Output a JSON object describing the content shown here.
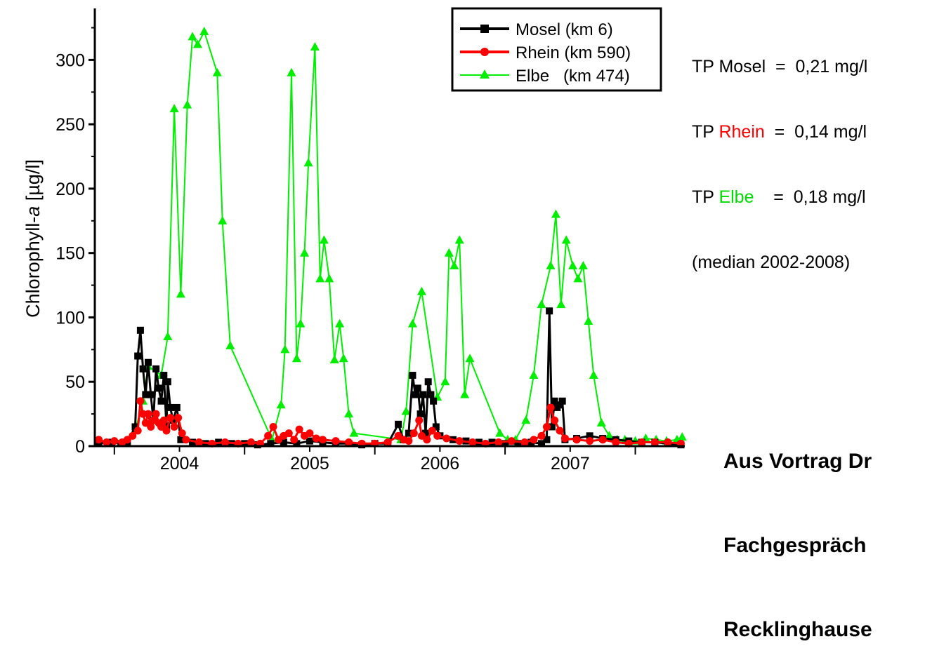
{
  "chart_data": {
    "type": "line",
    "title": "",
    "xlabel": "",
    "ylabel": "Chlorophyll-a [µg/l]",
    "ylabel_main": "Chlorophyll-",
    "ylabel_italic": "a",
    "ylabel_unit": " [µg/l]",
    "xlim": [
      2003.35,
      2007.88
    ],
    "ylim": [
      0,
      340
    ],
    "x_ticks": [
      {
        "value": 2003.5,
        "label": ""
      },
      {
        "value": 2004.0,
        "label": "2004"
      },
      {
        "value": 2004.5,
        "label": ""
      },
      {
        "value": 2005.0,
        "label": "2005"
      },
      {
        "value": 2005.5,
        "label": ""
      },
      {
        "value": 2006.0,
        "label": "2006"
      },
      {
        "value": 2006.5,
        "label": ""
      },
      {
        "value": 2007.0,
        "label": "2007"
      },
      {
        "value": 2007.5,
        "label": ""
      }
    ],
    "y_ticks": [
      0,
      50,
      100,
      150,
      200,
      250,
      300
    ],
    "grid": false,
    "legend_position": "top-right",
    "series": [
      {
        "name": "Mosel (km 6)",
        "color": "#000000",
        "marker": "square",
        "points": [
          [
            2003.38,
            2
          ],
          [
            2003.48,
            3
          ],
          [
            2003.55,
            2
          ],
          [
            2003.6,
            3
          ],
          [
            2003.66,
            15
          ],
          [
            2003.68,
            70
          ],
          [
            2003.7,
            90
          ],
          [
            2003.72,
            60
          ],
          [
            2003.74,
            40
          ],
          [
            2003.76,
            65
          ],
          [
            2003.78,
            40
          ],
          [
            2003.8,
            20
          ],
          [
            2003.82,
            60
          ],
          [
            2003.84,
            45
          ],
          [
            2003.86,
            35
          ],
          [
            2003.88,
            55
          ],
          [
            2003.9,
            15
          ],
          [
            2003.91,
            50
          ],
          [
            2003.93,
            30
          ],
          [
            2003.95,
            20
          ],
          [
            2003.98,
            30
          ],
          [
            2004.01,
            5
          ],
          [
            2004.1,
            3
          ],
          [
            2004.2,
            2
          ],
          [
            2004.3,
            3
          ],
          [
            2004.4,
            2
          ],
          [
            2004.5,
            2
          ],
          [
            2004.6,
            1
          ],
          [
            2004.7,
            2
          ],
          [
            2004.8,
            3
          ],
          [
            2004.9,
            2
          ],
          [
            2005.0,
            4
          ],
          [
            2005.1,
            3
          ],
          [
            2005.2,
            2
          ],
          [
            2005.3,
            2
          ],
          [
            2005.4,
            1
          ],
          [
            2005.5,
            2
          ],
          [
            2005.6,
            2
          ],
          [
            2005.68,
            17
          ],
          [
            2005.72,
            5
          ],
          [
            2005.76,
            10
          ],
          [
            2005.79,
            55
          ],
          [
            2005.81,
            40
          ],
          [
            2005.83,
            45
          ],
          [
            2005.85,
            25
          ],
          [
            2005.87,
            40
          ],
          [
            2005.89,
            10
          ],
          [
            2005.91,
            50
          ],
          [
            2005.93,
            40
          ],
          [
            2005.95,
            35
          ],
          [
            2005.97,
            15
          ],
          [
            2006.0,
            8
          ],
          [
            2006.1,
            5
          ],
          [
            2006.2,
            4
          ],
          [
            2006.3,
            3
          ],
          [
            2006.4,
            3
          ],
          [
            2006.5,
            2
          ],
          [
            2006.6,
            2
          ],
          [
            2006.7,
            3
          ],
          [
            2006.78,
            2
          ],
          [
            2006.82,
            5
          ],
          [
            2006.84,
            105
          ],
          [
            2006.86,
            15
          ],
          [
            2006.88,
            35
          ],
          [
            2006.9,
            30
          ],
          [
            2006.92,
            32
          ],
          [
            2006.94,
            35
          ],
          [
            2006.96,
            5
          ],
          [
            2007.05,
            6
          ],
          [
            2007.15,
            8
          ],
          [
            2007.25,
            6
          ],
          [
            2007.35,
            5
          ],
          [
            2007.45,
            4
          ],
          [
            2007.55,
            3
          ],
          [
            2007.65,
            3
          ],
          [
            2007.75,
            2
          ],
          [
            2007.85,
            1
          ]
        ]
      },
      {
        "name": "Rhein (km 590)",
        "color": "#ff0000",
        "marker": "circle",
        "points": [
          [
            2003.38,
            5
          ],
          [
            2003.44,
            3
          ],
          [
            2003.5,
            4
          ],
          [
            2003.56,
            3
          ],
          [
            2003.6,
            5
          ],
          [
            2003.64,
            8
          ],
          [
            2003.68,
            12
          ],
          [
            2003.7,
            35
          ],
          [
            2003.72,
            25
          ],
          [
            2003.74,
            18
          ],
          [
            2003.76,
            25
          ],
          [
            2003.78,
            15
          ],
          [
            2003.8,
            20
          ],
          [
            2003.82,
            25
          ],
          [
            2003.84,
            18
          ],
          [
            2003.86,
            15
          ],
          [
            2003.88,
            20
          ],
          [
            2003.9,
            12
          ],
          [
            2003.93,
            22
          ],
          [
            2003.96,
            15
          ],
          [
            2003.99,
            22
          ],
          [
            2004.02,
            10
          ],
          [
            2004.05,
            5
          ],
          [
            2004.15,
            3
          ],
          [
            2004.25,
            2
          ],
          [
            2004.35,
            3
          ],
          [
            2004.45,
            2
          ],
          [
            2004.55,
            3
          ],
          [
            2004.62,
            2
          ],
          [
            2004.68,
            8
          ],
          [
            2004.72,
            15
          ],
          [
            2004.76,
            5
          ],
          [
            2004.8,
            8
          ],
          [
            2004.84,
            10
          ],
          [
            2004.88,
            5
          ],
          [
            2004.92,
            13
          ],
          [
            2004.96,
            8
          ],
          [
            2005.0,
            10
          ],
          [
            2005.05,
            6
          ],
          [
            2005.1,
            5
          ],
          [
            2005.2,
            4
          ],
          [
            2005.3,
            3
          ],
          [
            2005.4,
            2
          ],
          [
            2005.5,
            2
          ],
          [
            2005.6,
            3
          ],
          [
            2005.68,
            8
          ],
          [
            2005.72,
            5
          ],
          [
            2005.76,
            4
          ],
          [
            2005.8,
            10
          ],
          [
            2005.84,
            20
          ],
          [
            2005.86,
            8
          ],
          [
            2005.9,
            5
          ],
          [
            2005.94,
            12
          ],
          [
            2005.98,
            8
          ],
          [
            2006.05,
            6
          ],
          [
            2006.15,
            4
          ],
          [
            2006.25,
            3
          ],
          [
            2006.35,
            2
          ],
          [
            2006.45,
            3
          ],
          [
            2006.55,
            4
          ],
          [
            2006.65,
            3
          ],
          [
            2006.72,
            5
          ],
          [
            2006.78,
            8
          ],
          [
            2006.82,
            15
          ],
          [
            2006.85,
            30
          ],
          [
            2006.88,
            20
          ],
          [
            2006.92,
            12
          ],
          [
            2006.96,
            6
          ],
          [
            2007.05,
            5
          ],
          [
            2007.15,
            4
          ],
          [
            2007.25,
            5
          ],
          [
            2007.35,
            3
          ],
          [
            2007.45,
            2
          ],
          [
            2007.55,
            3
          ],
          [
            2007.65,
            3
          ],
          [
            2007.75,
            3
          ],
          [
            2007.85,
            2
          ]
        ]
      },
      {
        "name": "Elbe   (km 474)",
        "color": "#00ee00",
        "marker": "triangle",
        "points": [
          [
            2003.66,
            12
          ],
          [
            2003.72,
            35
          ],
          [
            2003.76,
            62
          ],
          [
            2003.86,
            55
          ],
          [
            2003.91,
            85
          ],
          [
            2003.96,
            262
          ],
          [
            2004.01,
            118
          ],
          [
            2004.06,
            265
          ],
          [
            2004.1,
            318
          ],
          [
            2004.14,
            312
          ],
          [
            2004.19,
            322
          ],
          [
            2004.29,
            290
          ],
          [
            2004.33,
            175
          ],
          [
            2004.39,
            78
          ],
          [
            2004.71,
            5
          ],
          [
            2004.78,
            32
          ],
          [
            2004.81,
            75
          ],
          [
            2004.86,
            290
          ],
          [
            2004.9,
            68
          ],
          [
            2004.93,
            95
          ],
          [
            2004.96,
            150
          ],
          [
            2004.99,
            220
          ],
          [
            2005.04,
            310
          ],
          [
            2005.08,
            130
          ],
          [
            2005.11,
            160
          ],
          [
            2005.15,
            130
          ],
          [
            2005.19,
            67
          ],
          [
            2005.23,
            95
          ],
          [
            2005.26,
            68
          ],
          [
            2005.3,
            25
          ],
          [
            2005.34,
            10
          ],
          [
            2005.7,
            5
          ],
          [
            2005.74,
            27
          ],
          [
            2005.79,
            95
          ],
          [
            2005.86,
            120
          ],
          [
            2005.98,
            38
          ],
          [
            2006.04,
            50
          ],
          [
            2006.07,
            150
          ],
          [
            2006.11,
            140
          ],
          [
            2006.15,
            160
          ],
          [
            2006.19,
            40
          ],
          [
            2006.23,
            68
          ],
          [
            2006.46,
            10
          ],
          [
            2006.52,
            5
          ],
          [
            2006.58,
            5
          ],
          [
            2006.66,
            20
          ],
          [
            2006.72,
            55
          ],
          [
            2006.78,
            110
          ],
          [
            2006.85,
            140
          ],
          [
            2006.89,
            180
          ],
          [
            2006.93,
            110
          ],
          [
            2006.97,
            160
          ],
          [
            2007.02,
            140
          ],
          [
            2007.06,
            130
          ],
          [
            2007.1,
            140
          ],
          [
            2007.14,
            97
          ],
          [
            2007.18,
            55
          ],
          [
            2007.24,
            18
          ],
          [
            2007.3,
            8
          ],
          [
            2007.36,
            5
          ],
          [
            2007.42,
            5
          ],
          [
            2007.5,
            4
          ],
          [
            2007.58,
            6
          ],
          [
            2007.66,
            5
          ],
          [
            2007.74,
            4
          ],
          [
            2007.82,
            5
          ],
          [
            2007.86,
            7
          ]
        ]
      }
    ]
  },
  "tp_panel": {
    "line1": {
      "prefix": "TP ",
      "river": "Mosel",
      "suffix": "  =  0,21 mg/l"
    },
    "line2": {
      "prefix": "TP ",
      "river": "Rhein",
      "suffix": "  =  0,14 mg/l"
    },
    "line3": {
      "prefix": "TP ",
      "river": "Elbe",
      "suffix": "    =  0,18 mg/l"
    },
    "line4": "(median 2002-2008)"
  },
  "note": {
    "line1": "Aus Vortrag Dr",
    "line2": "Fachgespräch",
    "line3": "Recklinghause"
  },
  "colors": {
    "mosel": "#000000",
    "rhein": "#ff0000",
    "elbe": "#00ee00"
  }
}
